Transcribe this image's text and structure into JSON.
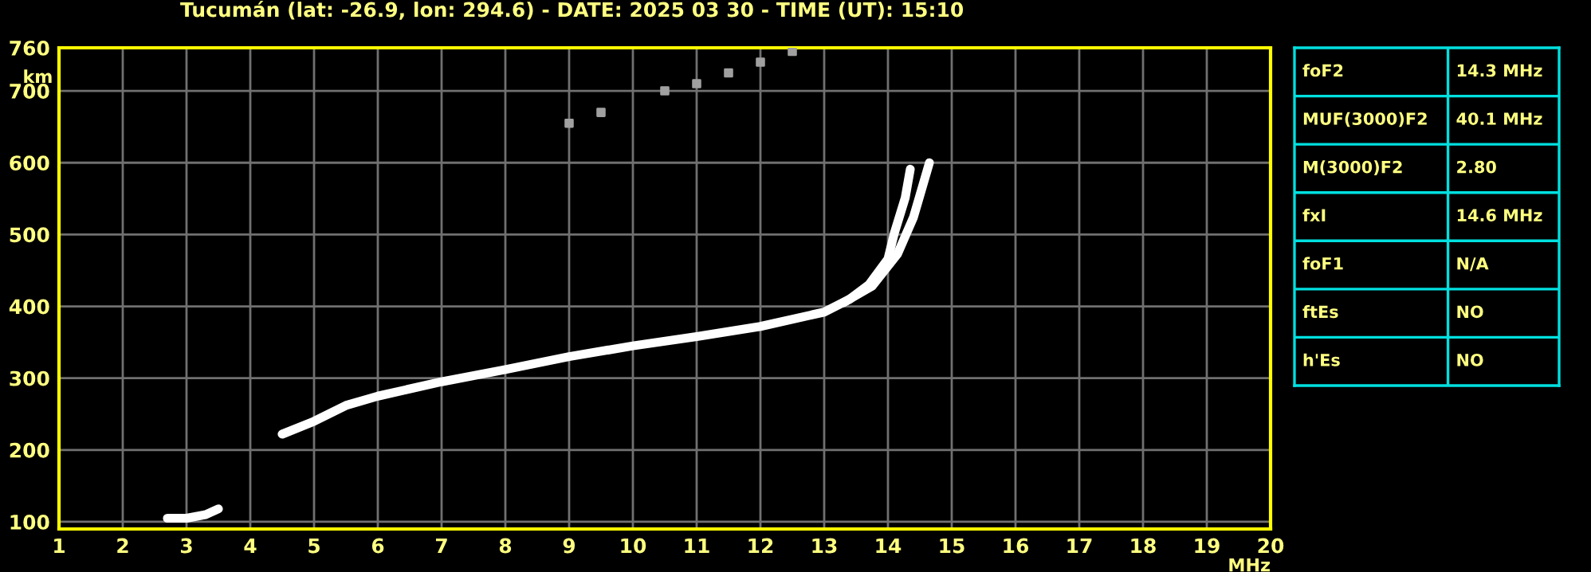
{
  "chart_data": [
    {
      "type": "line",
      "title": "Tucumán (lat: -26.9, lon: 294.6) - DATE: 2025 03 30 - TIME (UT): 15:10",
      "xlabel": "MHz",
      "ylabel": "km",
      "xlim": [
        1,
        20
      ],
      "xticks": [
        1,
        2,
        3,
        4,
        5,
        6,
        7,
        8,
        9,
        10,
        11,
        12,
        13,
        14,
        15,
        16,
        17,
        18,
        19,
        20
      ],
      "ylim": [
        90,
        760
      ],
      "yticks": [
        100,
        200,
        300,
        400,
        500,
        600,
        700,
        760
      ],
      "grid": true,
      "series": [
        {
          "color": "#ffffff",
          "x": [
            4.5,
            5.0,
            5.5,
            6.0,
            7.0,
            8.0,
            9.0,
            10.0,
            11.0,
            12.0,
            13.0,
            13.4,
            13.7,
            14.0,
            14.1,
            14.27,
            14.35
          ],
          "values": [
            222,
            240,
            262,
            275,
            295,
            312,
            330,
            345,
            358,
            372,
            392,
            410,
            430,
            466,
            502,
            551,
            591
          ]
        },
        {
          "color": "#ffffff",
          "x": [
            13.3,
            13.75,
            14.15,
            14.4,
            14.65
          ],
          "values": [
            405,
            428,
            473,
            524,
            600
          ]
        },
        {
          "color": "#ffffff",
          "x": [
            2.7,
            3.0,
            3.3,
            3.5
          ],
          "values": [
            105,
            105,
            110,
            118
          ]
        },
        {
          "type": "scatter",
          "color": "#a0a0a0",
          "marker": "square",
          "x": [
            9.0,
            9.5,
            10.5,
            11.0,
            11.5,
            12.0,
            12.5
          ],
          "values": [
            655,
            670,
            700,
            710,
            725,
            740,
            755
          ]
        }
      ]
    },
    {
      "type": "other",
      "annotations": [
        "foF2",
        "14.3 MHz",
        "MUF(3000)F2",
        "40.1 MHz",
        "M(3000)F2",
        "2.80",
        "fxI",
        "14.6 MHz",
        "foF1",
        "N/A",
        "ftEs",
        "NO",
        "h'Es",
        "NO"
      ]
    }
  ]
}
